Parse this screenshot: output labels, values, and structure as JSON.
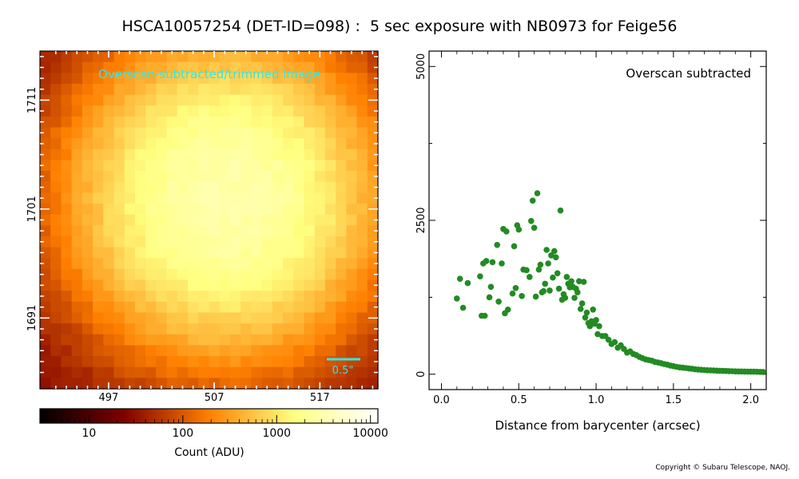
{
  "title": "HSCA10057254 (DET-ID=098) :  5 sec exposure with NB0973 for Feige56",
  "copyright": "Copyright © Subaru Telescope, NAOJ.",
  "colors": {
    "points": "#228b22",
    "image_label": "#33e6e6"
  },
  "chart_data": [
    {
      "type": "heatmap",
      "panel": "image",
      "label": "Overscan-subtracted/trimmed image",
      "scalebar_label": "0.5\"",
      "colormap": "afmhot",
      "x_ticks": [
        "497",
        "507",
        "517"
      ],
      "y_ticks": [
        "1711",
        "1701",
        "1691"
      ],
      "xlim": [
        491,
        523
      ],
      "ylim": [
        1685,
        1716
      ],
      "source_center": [
        508.5,
        1702.5
      ],
      "source_peak_adu": 4000,
      "background_adu": 25,
      "source_sigma_px": 6.2,
      "core_dip_fraction": 0.08
    },
    {
      "type": "colorbar",
      "scale": "log",
      "range": [
        3,
        12000
      ],
      "tick_labels": [
        "10",
        "100",
        "1000",
        "10000"
      ],
      "tick_values": [
        10,
        100,
        1000,
        10000
      ],
      "label": "Count (ADU)"
    },
    {
      "type": "scatter",
      "panel": "profile",
      "annotation": "Overscan subtracted",
      "xlabel": "Distance from barycenter (arcsec)",
      "ylabel": "",
      "xlim": [
        -0.08,
        2.1
      ],
      "ylim": [
        -250,
        5250
      ],
      "x_ticks": [
        "0.0",
        "0.5",
        "1.0",
        "1.5",
        "2.0"
      ],
      "x_tick_values": [
        0.0,
        0.5,
        1.0,
        1.5,
        2.0
      ],
      "y_ticks": [
        "0",
        "2500",
        "5000"
      ],
      "y_tick_values": [
        0,
        2500,
        5000
      ],
      "point_color": "#228b22",
      "x": [
        0.1,
        0.12,
        0.14,
        0.17,
        0.25,
        0.26,
        0.27,
        0.28,
        0.29,
        0.31,
        0.32,
        0.33,
        0.36,
        0.37,
        0.39,
        0.4,
        0.41,
        0.42,
        0.43,
        0.46,
        0.47,
        0.48,
        0.49,
        0.5,
        0.52,
        0.53,
        0.55,
        0.57,
        0.58,
        0.59,
        0.6,
        0.61,
        0.62,
        0.63,
        0.64,
        0.65,
        0.66,
        0.67,
        0.68,
        0.69,
        0.7,
        0.71,
        0.72,
        0.73,
        0.74,
        0.75,
        0.76,
        0.77,
        0.78,
        0.79,
        0.8,
        0.81,
        0.82,
        0.83,
        0.84,
        0.85,
        0.86,
        0.87,
        0.88,
        0.89,
        0.9,
        0.91,
        0.92,
        0.93,
        0.94,
        0.95,
        0.96,
        0.97,
        0.98,
        0.99,
        1.0,
        1.01,
        1.02,
        1.04,
        1.06,
        1.08,
        1.1,
        1.12,
        1.14,
        1.16,
        1.18,
        1.2,
        1.22,
        1.24,
        1.26,
        1.28,
        1.3,
        1.32,
        1.34,
        1.36,
        1.38,
        1.4,
        1.42,
        1.44,
        1.46,
        1.48,
        1.5,
        1.52,
        1.54,
        1.56,
        1.58,
        1.6,
        1.62,
        1.64,
        1.66,
        1.68,
        1.7,
        1.72,
        1.74,
        1.76,
        1.78,
        1.8,
        1.82,
        1.84,
        1.86,
        1.88,
        1.9,
        1.92,
        1.94,
        1.96,
        1.98,
        2.0,
        2.02,
        2.04,
        2.06,
        2.08
      ],
      "y": [
        1230,
        1550,
        1080,
        1480,
        1590,
        950,
        1800,
        950,
        1840,
        1250,
        1420,
        1820,
        2100,
        1180,
        1800,
        2360,
        990,
        2320,
        1050,
        1310,
        2080,
        1400,
        2420,
        2350,
        1270,
        1700,
        1690,
        1580,
        2490,
        2820,
        2380,
        1260,
        2940,
        1700,
        1780,
        1330,
        1350,
        1470,
        2020,
        1800,
        1360,
        1930,
        1570,
        2000,
        1900,
        1640,
        1390,
        2660,
        1210,
        1300,
        1240,
        1580,
        1470,
        1410,
        1510,
        1420,
        1240,
        1390,
        1330,
        1510,
        1060,
        1150,
        1500,
        920,
        1000,
        830,
        780,
        860,
        1050,
        820,
        880,
        650,
        780,
        620,
        620,
        560,
        490,
        520,
        430,
        470,
        410,
        350,
        370,
        330,
        310,
        280,
        260,
        240,
        230,
        220,
        200,
        190,
        180,
        165,
        155,
        140,
        130,
        120,
        110,
        105,
        100,
        92,
        88,
        80,
        76,
        72,
        68,
        64,
        62,
        60,
        58,
        56,
        54,
        52,
        50,
        48,
        46,
        45,
        44,
        43,
        42,
        41,
        40,
        39,
        38,
        37
      ]
    }
  ]
}
